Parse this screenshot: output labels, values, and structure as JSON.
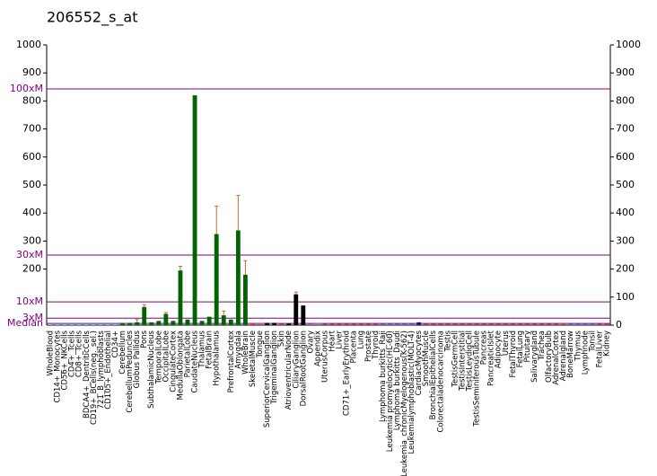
{
  "chart_data": {
    "type": "bar",
    "title": "206552_s_at",
    "categories": [
      "WholeBlood",
      "CD14+_Monocytes",
      "CD56+_NKCells",
      "CD4+_Tcells",
      "CD8+_Tcells",
      "BDCA4+_DentriticCells",
      "CD19+_BCells(neg._sel.)",
      "721_B_lymphoblasts",
      "CD105+_Endothelial",
      "CD34+",
      "Cerebellum",
      "CerebellumPeduncles",
      "Globus Pallidus",
      "Pons",
      "SubthalamicNucleus",
      "TemporalLobe",
      "OccipitalLobe",
      "CingulateCortex",
      "MedullaOblongata",
      "ParietalLobe",
      "CaudateNucleus",
      "Thalamus",
      "FetalBrain",
      "Hypothalamus",
      null,
      "PrefrontalCortex",
      "Amygdala",
      "WholeBrain",
      "SkeletalMuscle",
      "Tongue",
      "SuperiorCervicalGanglion",
      "TrigeminalGanglion",
      "Skin",
      "AtrioventricularNode",
      "CiliaryGanglion",
      "DorsalRootGanglion",
      "Ovary",
      "Appendix",
      "UterusCorpus",
      "Heart",
      "Liver",
      "CD71+_EarlyErythroid",
      "Placenta",
      "Lung",
      "Prostate",
      "Thyroid",
      "Lymphoma burkitts_Raji",
      "Leukemia promyelocytic(HL-60)",
      "Lymphoma burkitts_Daudi",
      "Leukemia_chronicMyelogenous(K-562)",
      "Leukemialymphoblastic(MOLT-4)",
      "CardiacMyocytes",
      "SmoothMuscle",
      "BronchialEpithelialCells",
      "Colorectaladenocarcinoma",
      "Testis",
      "TestisGermCell",
      "TestisInterstitial",
      "TestisLeydigCell",
      "TestisSeminiferousTubule",
      "Pancreas",
      "PancreaticIslet",
      "Adipocyte",
      "Uterus",
      "FetalThyroid",
      "FetalLung",
      "Pituitary",
      "Salivarygland",
      "Trachea",
      "OlfactoryBulb",
      "AdrenalCortex",
      "Adrenalgland",
      "BoneMarrow",
      "Thymus",
      "Lymphnode",
      "Tonsil",
      "FetalLiver",
      "Kidney"
    ],
    "values": [
      5,
      5,
      5,
      5,
      5,
      5,
      5,
      5,
      5,
      5,
      8,
      8,
      10,
      65,
      10,
      15,
      40,
      15,
      195,
      20,
      820,
      15,
      30,
      325,
      35,
      20,
      338,
      180,
      8,
      3,
      8,
      8,
      5,
      5,
      110,
      70,
      5,
      8,
      5,
      5,
      5,
      5,
      5,
      5,
      5,
      5,
      5,
      5,
      5,
      5,
      5,
      10,
      5,
      5,
      5,
      5,
      5,
      5,
      5,
      5,
      5,
      5,
      5,
      5,
      5,
      5,
      5,
      5,
      5,
      5,
      5,
      8,
      5,
      5,
      5,
      5,
      5,
      5
    ],
    "errors": [
      null,
      null,
      null,
      null,
      null,
      null,
      null,
      null,
      null,
      null,
      null,
      null,
      10,
      8,
      null,
      null,
      5,
      null,
      15,
      null,
      null,
      null,
      null,
      100,
      15,
      null,
      125,
      50,
      null,
      null,
      null,
      null,
      null,
      null,
      8,
      null,
      null,
      null,
      null,
      null,
      null,
      null,
      null,
      null,
      null,
      null,
      null,
      null,
      null,
      null,
      null,
      null,
      null,
      null,
      null,
      null,
      null,
      null,
      null,
      null,
      null,
      null,
      null,
      null,
      null,
      null,
      null,
      null,
      null,
      null,
      null,
      null,
      null,
      null,
      null,
      null,
      null,
      null
    ],
    "colors": [
      "#66ccff",
      "#66ccff",
      "#66ccff",
      "#66ccff",
      "#66ccff",
      "#66ccff",
      "#66ccff",
      "#66ccff",
      "#66ccff",
      "#66ccff",
      "#006400",
      "#006400",
      "#006400",
      "#006400",
      "#006400",
      "#006400",
      "#006400",
      "#006400",
      "#006400",
      "#006400",
      "#006400",
      "#006400",
      "#006400",
      "#006400",
      "#006400",
      "#006400",
      "#006400",
      "#006400",
      "#cc3366",
      "#cc3366",
      "#000000",
      "#000000",
      "#cc3366",
      "#000000",
      "#000000",
      "#000000",
      "#9966cc",
      "#9966cc",
      "#cc3366",
      "#cc3366",
      "#cc3366",
      "#cc3366",
      "#cc3366",
      "#cc3366",
      "#cc3366",
      "#cc3366",
      "#6666cc",
      "#6666cc",
      "#6666cc",
      "#6666cc",
      "#6666cc",
      "#330099",
      "#cc3366",
      "#cc3366",
      "#cc3366",
      "#cc3366",
      "#cc3366",
      "#cc3366",
      "#cc3366",
      "#cc3366",
      "#cc3366",
      "#cc3366",
      "#cc3366",
      "#cc3366",
      "#cc3366",
      "#cc3366",
      "#cc3366",
      "#cc3366",
      "#cc3366",
      "#cc3366",
      "#cc3366",
      "#cc3366",
      "#6666cc",
      "#6666cc",
      "#6666cc",
      "#6666cc",
      "#cc3366",
      "#cc3366"
    ],
    "error_color": "#cc6633",
    "ylim": [
      0,
      1000
    ],
    "yticks": [
      0,
      100,
      200,
      300,
      400,
      500,
      600,
      700,
      800,
      900,
      1000
    ],
    "left_yticks": [
      200,
      300,
      400,
      500,
      600,
      700,
      800,
      900,
      1000
    ],
    "reference_lines": [
      {
        "label": "100xM",
        "value": 843
      },
      {
        "label": "30xM",
        "value": 250
      },
      {
        "label": "10xM",
        "value": 83
      },
      {
        "label": "3xM",
        "value": 25
      },
      {
        "label": "Median",
        "value": 6
      }
    ],
    "reference_color": "#800080"
  }
}
